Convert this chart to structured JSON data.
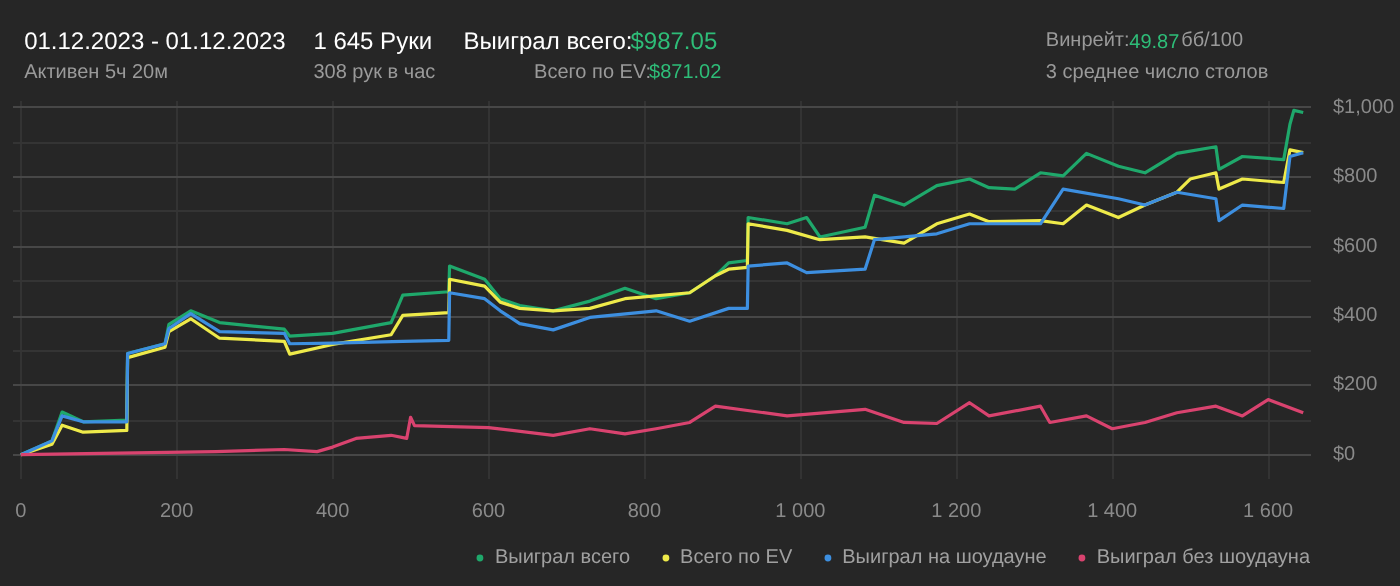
{
  "chart_data": {
    "type": "line",
    "title": "01.12.2023 - 01.12.2023",
    "subtitle": "Активен 5ч 20м",
    "annotations": [
      "1 645 Руки",
      "308 рук в час",
      "Выиграл всего:",
      "$987.05",
      "Всего по EV:",
      "$871.02",
      "Винрейт:",
      "49.87",
      "бб/100",
      "3 среднее число столов"
    ],
    "xlim": [
      -10,
      1655
    ],
    "ylim": [
      -70,
      1020
    ],
    "xticks": [
      0,
      200,
      400,
      600,
      800,
      {
        "value": 1000,
        "label": "1 000"
      },
      {
        "value": 1200,
        "label": "1 200"
      },
      {
        "value": 1400,
        "label": "1 400"
      },
      {
        "value": 1600,
        "label": "1 600"
      }
    ],
    "yticks": [
      {
        "value": 0,
        "label": "$0"
      },
      {
        "value": 200,
        "label": "$200"
      },
      {
        "value": 400,
        "label": "$400"
      },
      {
        "value": 600,
        "label": "$600"
      },
      {
        "value": 800,
        "label": "$800"
      },
      {
        "value": 1000,
        "label": "$1,000"
      }
    ],
    "grid": true,
    "legend": "bottom",
    "marker": "none",
    "line_style": "solid",
    "series": [
      {
        "name": "Выиграл всего",
        "color": "#1fa86b",
        "x": [
          0,
          40,
          53,
          80,
          136,
          137,
          185,
          190,
          218,
          255,
          338,
          345,
          400,
          475,
          490,
          549,
          550,
          595,
          615,
          640,
          683,
          730,
          775,
          815,
          858,
          891,
          908,
          932,
          933,
          983,
          1008,
          1025,
          1083,
          1095,
          1133,
          1175,
          1217,
          1242,
          1275,
          1308,
          1337,
          1367,
          1408,
          1442,
          1483,
          1533,
          1537,
          1567,
          1620,
          1628,
          1633,
          1645
        ],
        "values": [
          0,
          40,
          123,
          95,
          100,
          292,
          320,
          376,
          415,
          381,
          362,
          342,
          350,
          381,
          460,
          470,
          544,
          506,
          450,
          430,
          415,
          443,
          480,
          450,
          467,
          516,
          553,
          560,
          684,
          666,
          684,
          628,
          656,
          748,
          720,
          776,
          795,
          770,
          766,
          813,
          804,
          869,
          832,
          813,
          869,
          888,
          823,
          860,
          851,
          953,
          993,
          987
        ]
      },
      {
        "name": "Всего по EV",
        "color": "#eeea4a",
        "x": [
          0,
          40,
          53,
          80,
          136,
          137,
          185,
          190,
          218,
          255,
          338,
          345,
          400,
          475,
          490,
          549,
          550,
          595,
          615,
          640,
          683,
          730,
          775,
          858,
          891,
          908,
          932,
          933,
          983,
          1025,
          1083,
          1133,
          1175,
          1217,
          1242,
          1308,
          1337,
          1367,
          1408,
          1442,
          1483,
          1500,
          1533,
          1537,
          1567,
          1620,
          1628,
          1645
        ],
        "values": [
          0,
          30,
          85,
          65,
          70,
          280,
          310,
          355,
          392,
          336,
          327,
          290,
          318,
          346,
          402,
          410,
          506,
          486,
          440,
          422,
          415,
          422,
          450,
          467,
          516,
          535,
          540,
          666,
          647,
          620,
          628,
          610,
          666,
          694,
          672,
          675,
          666,
          720,
          684,
          720,
          757,
          795,
          813,
          766,
          795,
          785,
          879,
          871
        ]
      },
      {
        "name": "Выиграл на шоудауне",
        "color": "#3d8fe0",
        "x": [
          0,
          40,
          53,
          80,
          136,
          137,
          185,
          190,
          218,
          255,
          338,
          345,
          400,
          490,
          549,
          550,
          595,
          615,
          640,
          683,
          730,
          815,
          858,
          908,
          932,
          933,
          983,
          1008,
          1083,
          1095,
          1175,
          1217,
          1308,
          1337,
          1408,
          1442,
          1483,
          1533,
          1537,
          1567,
          1620,
          1628,
          1645
        ],
        "values": [
          0,
          40,
          112,
          95,
          95,
          292,
          320,
          364,
          407,
          355,
          350,
          320,
          322,
          327,
          330,
          467,
          450,
          415,
          378,
          360,
          396,
          415,
          385,
          422,
          422,
          544,
          553,
          525,
          535,
          620,
          637,
          666,
          666,
          766,
          738,
          720,
          757,
          738,
          675,
          720,
          710,
          860,
          871
        ]
      },
      {
        "name": "Выиграл без шоудауна",
        "color": "#d9436f",
        "x": [
          0,
          250,
          338,
          380,
          400,
          430,
          475,
          495,
          500,
          505,
          600,
          683,
          730,
          775,
          815,
          858,
          891,
          983,
          1083,
          1133,
          1175,
          1217,
          1242,
          1308,
          1320,
          1367,
          1400,
          1442,
          1483,
          1533,
          1567,
          1600,
          1645
        ],
        "values": [
          0,
          9,
          15,
          9,
          22,
          47,
          56,
          47,
          108,
          84,
          78,
          56,
          75,
          60,
          75,
          93,
          140,
          112,
          131,
          93,
          90,
          150,
          112,
          140,
          93,
          112,
          75,
          93,
          121,
          140,
          112,
          159,
          121
        ]
      }
    ]
  }
}
